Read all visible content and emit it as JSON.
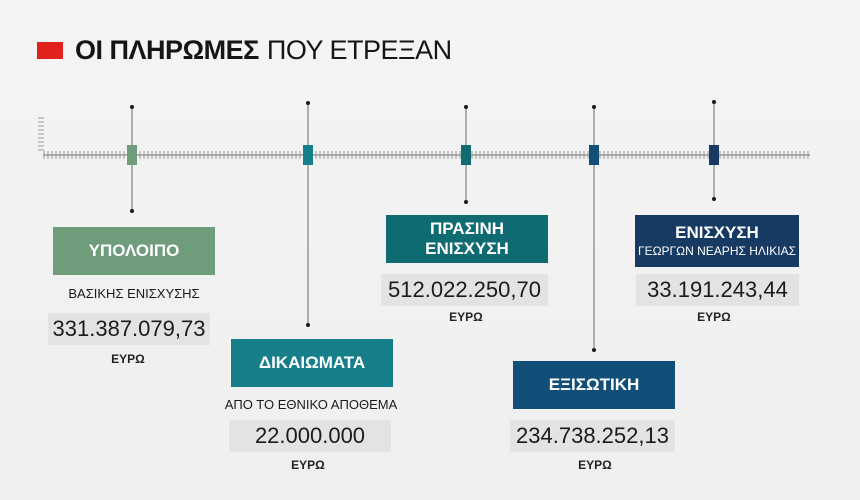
{
  "header": {
    "title_bold": "ΟΙ ΠΛΗΡΩΜΕΣ",
    "title_light": "ΠΟΥ ΕΤΡΕΞΑΝ"
  },
  "colors": {
    "accent": "#e1211b",
    "ypoloipo": "#6f9c7b",
    "dikaiomata": "#177f8a",
    "prasini": "#0e6b72",
    "exisotiki": "#124f78",
    "neoi": "#173a62",
    "amount_bg": "#e3e3e3"
  },
  "items": {
    "ypoloipo": {
      "label": "ΥΠΟΛΟΙΠΟ",
      "subtitle": "ΒΑΣΙΚΗΣ ΕΝΙΣΧΥΣΗΣ",
      "amount": "331.387.079,73",
      "unit": "ΕΥΡΩ"
    },
    "dikaiomata": {
      "label": "ΔΙΚΑΙΩΜΑΤΑ",
      "subtitle": "ΑΠΟ ΤΟ ΕΘΝΙΚΟ ΑΠΟΘΕΜΑ",
      "amount": "22.000.000",
      "unit": "ΕΥΡΩ"
    },
    "prasini": {
      "label": "ΠΡΑΣΙΝΗ ΕΝΙΣΧΥΣΗ",
      "amount": "512.022.250,70",
      "unit": "ΕΥΡΩ"
    },
    "exisotiki": {
      "label": "ΕΞΙΣΩΤΙΚΗ",
      "amount": "234.738.252,13",
      "unit": "ΕΥΡΩ"
    },
    "neoi": {
      "label": "ΕΝΙΣΧΥΣΗ",
      "label2": "ΓΕΩΡΓΩΝ ΝΕΑΡΗΣ ΗΛΙΚΙΑΣ",
      "amount": "33.191.243,44",
      "unit": "ΕΥΡΩ"
    }
  }
}
